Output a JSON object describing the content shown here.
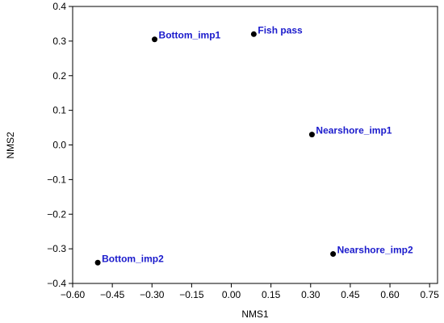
{
  "chart_data": {
    "type": "scatter",
    "xlabel": "NMS1",
    "ylabel": "NMS2",
    "xlim": [
      -0.6,
      0.78
    ],
    "ylim": [
      -0.4,
      0.4
    ],
    "x_ticks": [
      -0.6,
      -0.45,
      -0.3,
      -0.15,
      0.0,
      0.15,
      0.3,
      0.45,
      0.6,
      0.75
    ],
    "x_tick_labels": [
      "−0.60",
      "−0.45",
      "−0.30",
      "−0.15",
      "0.00",
      "0.15",
      "0.30",
      "0.45",
      "0.60",
      "0.75"
    ],
    "y_ticks": [
      -0.4,
      -0.3,
      -0.2,
      -0.1,
      0.0,
      0.1,
      0.2,
      0.3,
      0.4
    ],
    "y_tick_labels": [
      "−0.4",
      "−0.3",
      "−0.2",
      "−0.1",
      "0.0",
      "0.1",
      "0.2",
      "0.3",
      "0.4"
    ],
    "grid": false,
    "point_color": "#000000",
    "label_color": "#1a1acc",
    "points": [
      {
        "label": "Bottom_imp1",
        "x": -0.29,
        "y": 0.305
      },
      {
        "label": "Fish pass",
        "x": 0.085,
        "y": 0.32
      },
      {
        "label": "Nearshore_imp1",
        "x": 0.305,
        "y": 0.03
      },
      {
        "label": "Nearshore_imp2",
        "x": 0.385,
        "y": -0.315
      },
      {
        "label": "Bottom_imp2",
        "x": -0.505,
        "y": -0.34
      }
    ]
  }
}
